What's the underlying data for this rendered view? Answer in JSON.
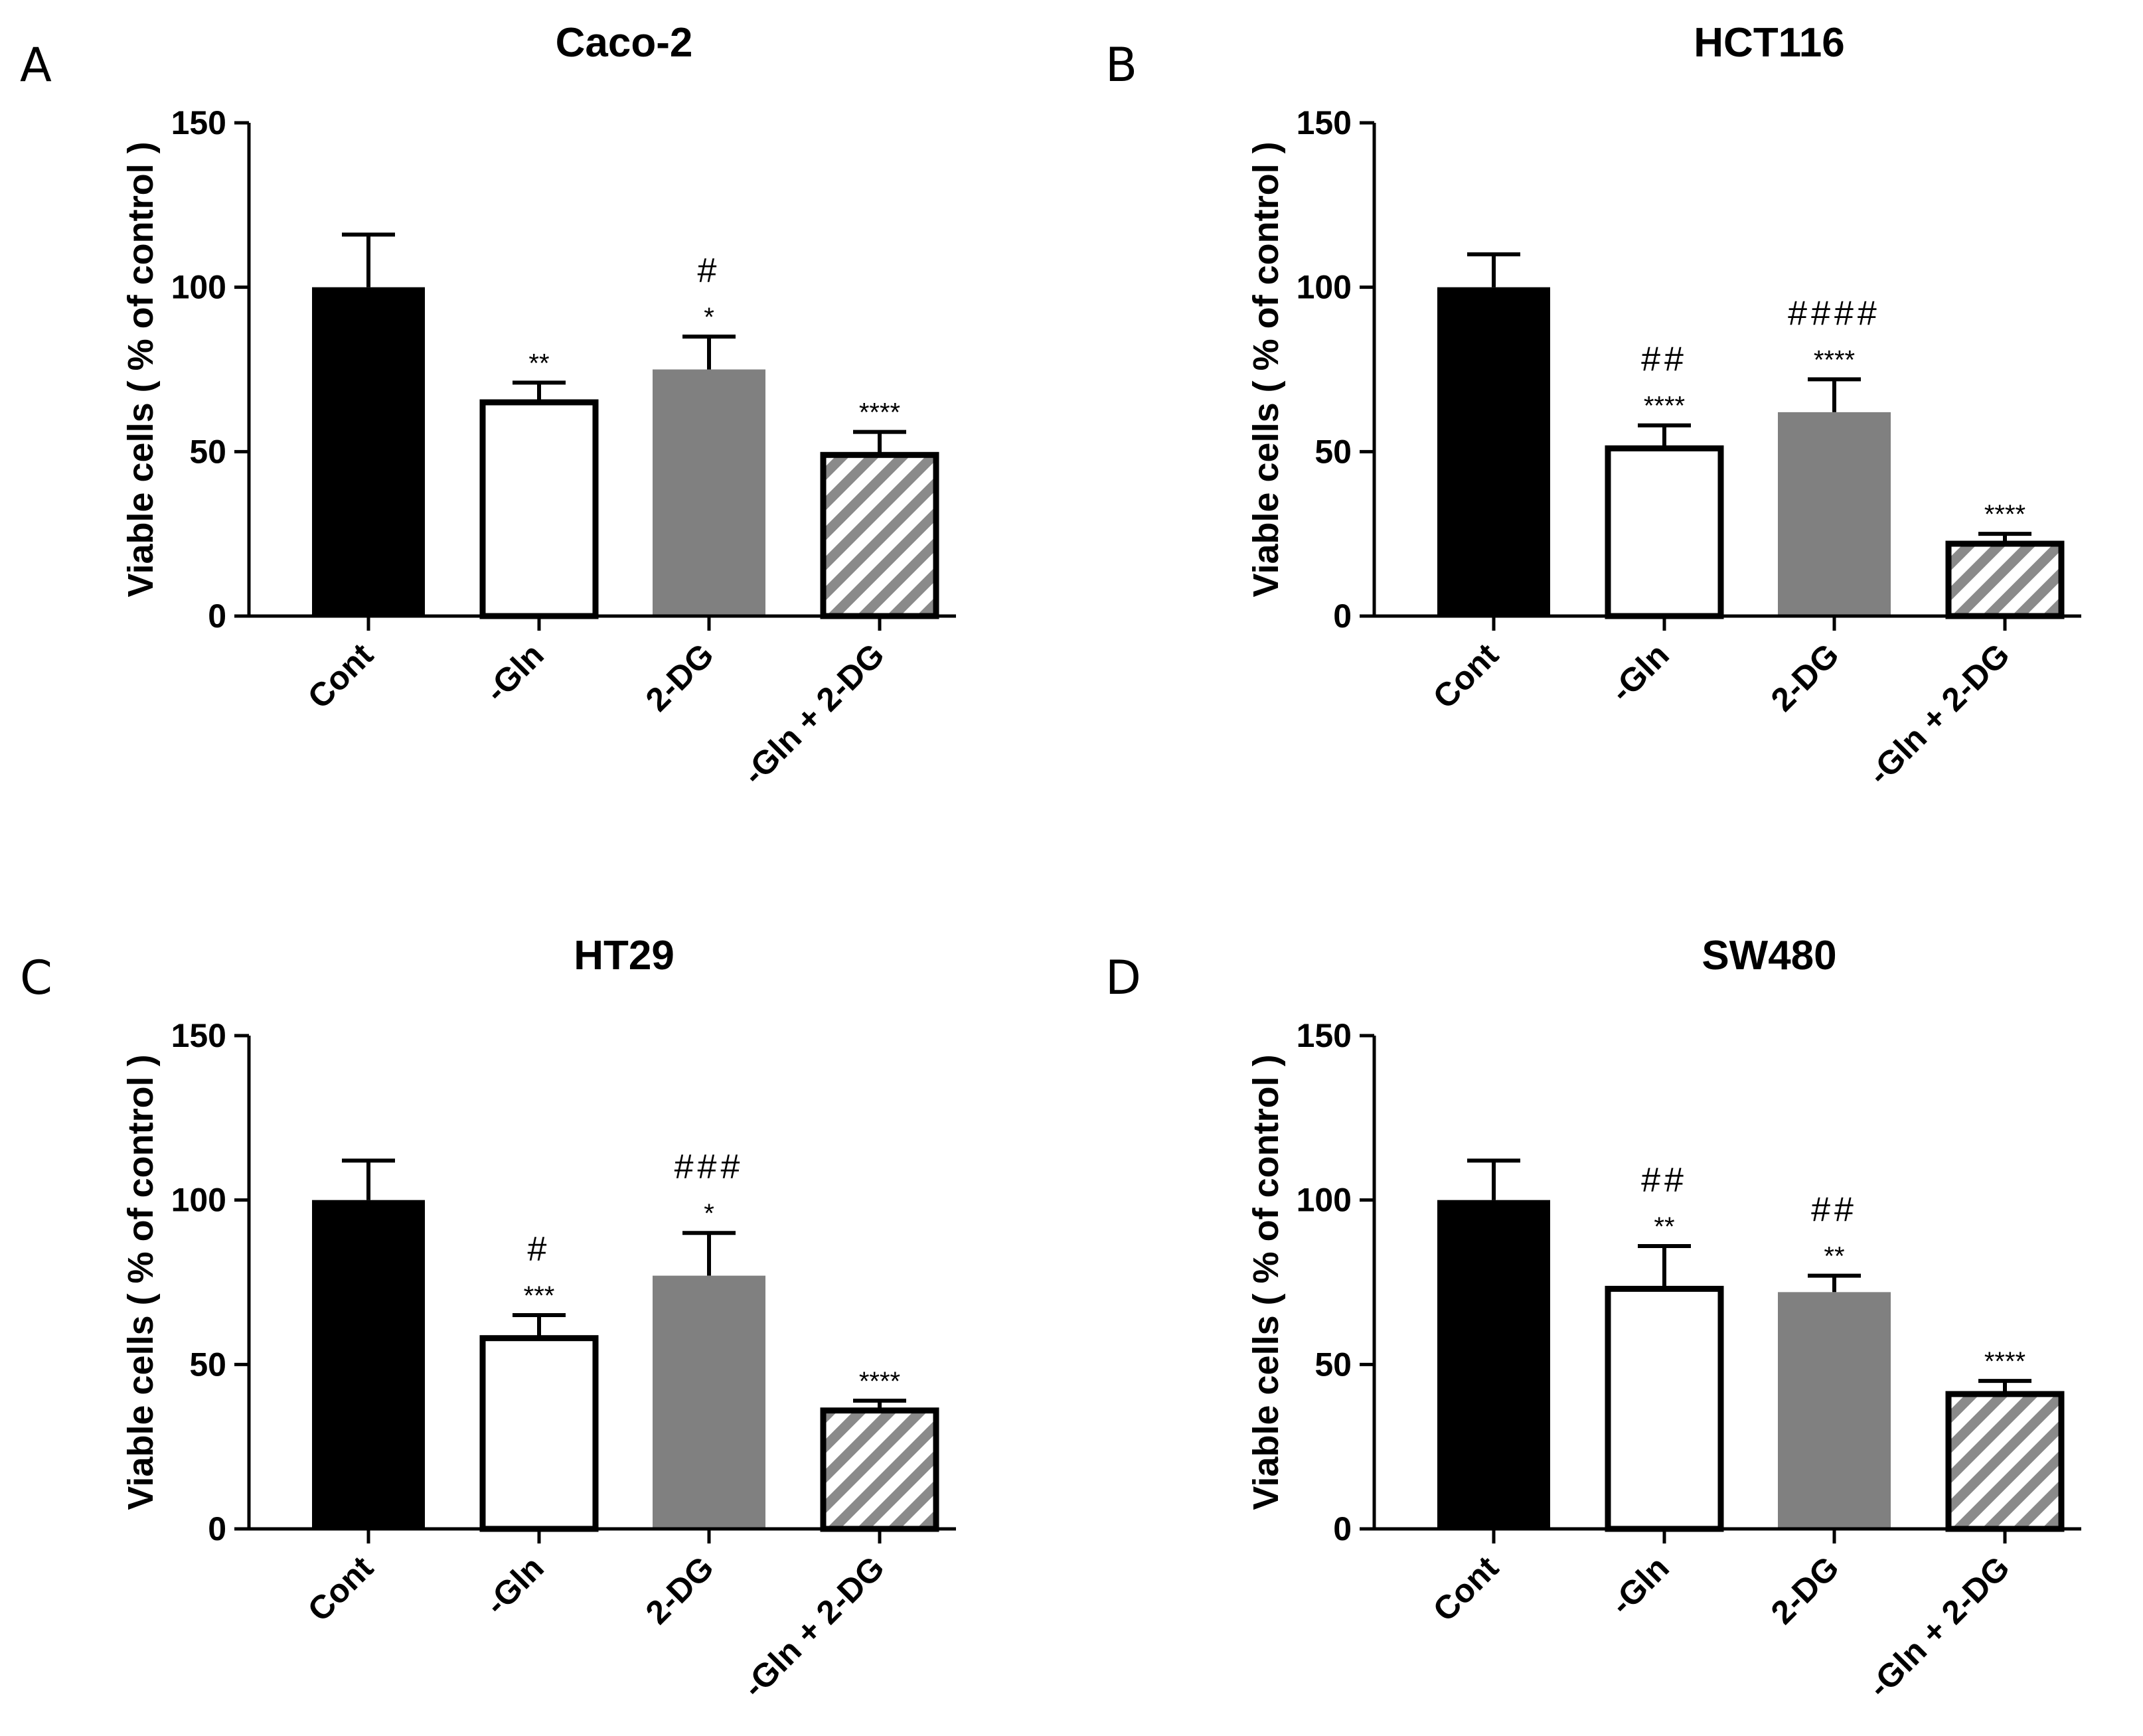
{
  "figure": {
    "panels": [
      "A",
      "B",
      "C",
      "D"
    ]
  },
  "colors": {
    "Cont": "#000000",
    "-Gln": "#ffffff",
    "2-DG": "#808080",
    "-Gln + 2-DG": "hatched-gray",
    "axis": "#000000"
  },
  "chart_data": [
    {
      "panel": "A",
      "type": "bar",
      "title": "Caco-2",
      "ylabel": "Viable cells ( % of control )",
      "xlabel": "",
      "ylim": [
        0,
        150
      ],
      "yticks": [
        0,
        50,
        100,
        150
      ],
      "categories": [
        "Cont",
        "-Gln",
        "2-DG",
        "-Gln + 2-DG"
      ],
      "values": [
        100,
        65,
        75,
        49
      ],
      "errors": [
        16,
        6,
        10,
        7
      ],
      "stars": [
        "",
        "**",
        "*",
        "****"
      ],
      "hashes": [
        "",
        "",
        "#",
        ""
      ]
    },
    {
      "panel": "B",
      "type": "bar",
      "title": "HCT116",
      "ylabel": "Viable cells ( % of control )",
      "xlabel": "",
      "ylim": [
        0,
        150
      ],
      "yticks": [
        0,
        50,
        100,
        150
      ],
      "categories": [
        "Cont",
        "-Gln",
        "2-DG",
        "-Gln + 2-DG"
      ],
      "values": [
        100,
        51,
        62,
        22
      ],
      "errors": [
        10,
        7,
        10,
        3
      ],
      "stars": [
        "",
        "****",
        "****",
        "****"
      ],
      "hashes": [
        "",
        "##",
        "####",
        ""
      ]
    },
    {
      "panel": "C",
      "type": "bar",
      "title": "HT29",
      "ylabel": "Viable cells ( % of control )",
      "xlabel": "",
      "ylim": [
        0,
        150
      ],
      "yticks": [
        0,
        50,
        100,
        150
      ],
      "categories": [
        "Cont",
        "-Gln",
        "2-DG",
        "-Gln + 2-DG"
      ],
      "values": [
        100,
        58,
        77,
        36
      ],
      "errors": [
        12,
        7,
        13,
        3
      ],
      "stars": [
        "",
        "***",
        "*",
        "****"
      ],
      "hashes": [
        "",
        "#",
        "###",
        ""
      ]
    },
    {
      "panel": "D",
      "type": "bar",
      "title": "SW480",
      "ylabel": "Viable cells ( % of control )",
      "xlabel": "",
      "ylim": [
        0,
        150
      ],
      "yticks": [
        0,
        50,
        100,
        150
      ],
      "categories": [
        "Cont",
        "-Gln",
        "2-DG",
        "-Gln + 2-DG"
      ],
      "values": [
        100,
        73,
        72,
        41
      ],
      "errors": [
        12,
        13,
        5,
        4
      ],
      "stars": [
        "",
        "**",
        "**",
        "****"
      ],
      "hashes": [
        "",
        "##",
        "##",
        ""
      ]
    }
  ]
}
